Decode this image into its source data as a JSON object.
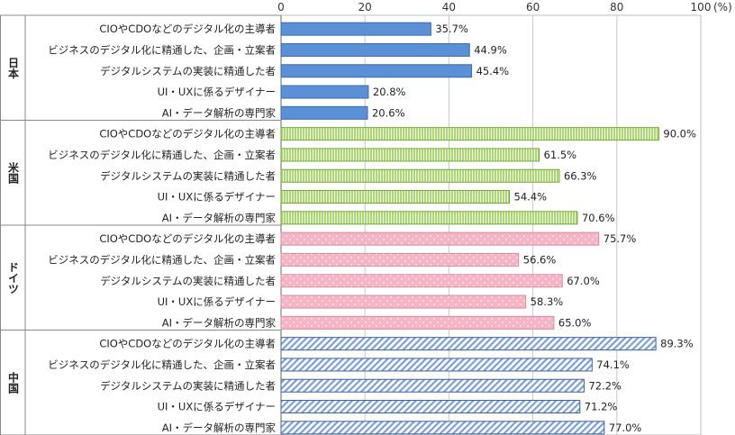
{
  "chart_data": {
    "type": "bar",
    "orientation": "horizontal",
    "x_ticks": [
      "0",
      "20",
      "40",
      "60",
      "80",
      "100"
    ],
    "x_unit": "(%)",
    "xlim": [
      0,
      100
    ],
    "grid": true,
    "groups": [
      {
        "name": "日本",
        "color": "#5b8fd6",
        "stroke": "#3a6cae",
        "pattern": "solid",
        "bars": [
          {
            "label": "CIOやCDOなどのデジタル化の主導者",
            "value": 35.7,
            "value_label": "35.7%"
          },
          {
            "label": "ビジネスのデジタル化に精通した、企画・立案者",
            "value": 44.9,
            "value_label": "44.9%"
          },
          {
            "label": "デジタルシステムの実装に精通した者",
            "value": 45.4,
            "value_label": "45.4%"
          },
          {
            "label": "UI・UXに係るデザイナー",
            "value": 20.8,
            "value_label": "20.8%"
          },
          {
            "label": "AI・データ解析の専門家",
            "value": 20.6,
            "value_label": "20.6%"
          }
        ]
      },
      {
        "name": "米国",
        "color": "#a8dc6a",
        "stroke": "#6fa832",
        "pattern": "vertical-stripes",
        "bars": [
          {
            "label": "CIOやCDOなどのデジタル化の主導者",
            "value": 90.0,
            "value_label": "90.0%"
          },
          {
            "label": "ビジネスのデジタル化に精通した、企画・立案者",
            "value": 61.5,
            "value_label": "61.5%"
          },
          {
            "label": "デジタルシステムの実装に精通した者",
            "value": 66.3,
            "value_label": "66.3%"
          },
          {
            "label": "UI・UXに係るデザイナー",
            "value": 54.4,
            "value_label": "54.4%"
          },
          {
            "label": "AI・データ解析の専門家",
            "value": 70.6,
            "value_label": "70.6%"
          }
        ]
      },
      {
        "name": "ドイツ",
        "color": "#f8b4c4",
        "stroke": "#d98aa0",
        "pattern": "dots",
        "bars": [
          {
            "label": "CIOやCDOなどのデジタル化の主導者",
            "value": 75.7,
            "value_label": "75.7%"
          },
          {
            "label": "ビジネスのデジタル化に精通した、企画・立案者",
            "value": 56.6,
            "value_label": "56.6%"
          },
          {
            "label": "デジタルシステムの実装に精通した者",
            "value": 67.0,
            "value_label": "67.0%"
          },
          {
            "label": "UI・UXに係るデザイナー",
            "value": 58.3,
            "value_label": "58.3%"
          },
          {
            "label": "AI・データ解析の専門家",
            "value": 65.0,
            "value_label": "65.0%"
          }
        ]
      },
      {
        "name": "中国",
        "color": "#7a9fd8",
        "stroke": "#3b5fa6",
        "pattern": "diagonal-stripes",
        "bars": [
          {
            "label": "CIOやCDOなどのデジタル化の主導者",
            "value": 89.3,
            "value_label": "89.3%"
          },
          {
            "label": "ビジネスのデジタル化に精通した、企画・立案者",
            "value": 74.1,
            "value_label": "74.1%"
          },
          {
            "label": "デジタルシステムの実装に精通した者",
            "value": 72.2,
            "value_label": "72.2%"
          },
          {
            "label": "UI・UXに係るデザイナー",
            "value": 71.2,
            "value_label": "71.2%"
          },
          {
            "label": "AI・データ解析の専門家",
            "value": 77.0,
            "value_label": "77.0%"
          }
        ]
      }
    ]
  }
}
